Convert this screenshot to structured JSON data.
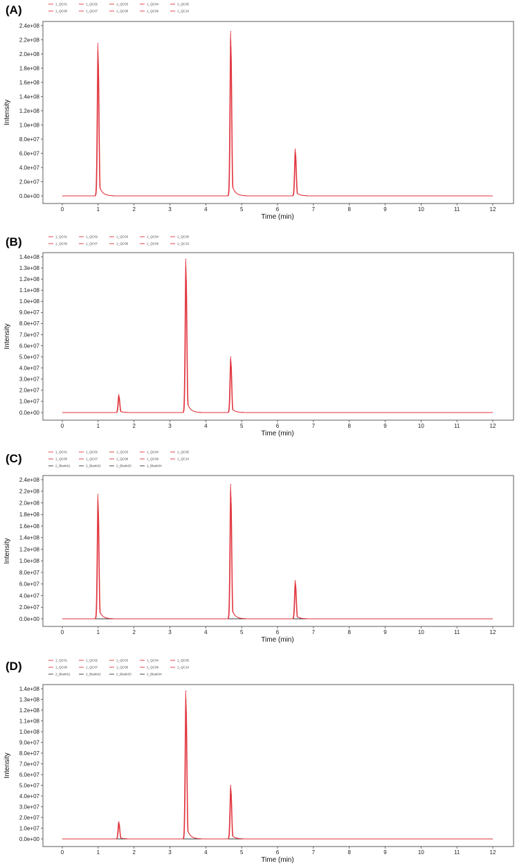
{
  "chart_data": [
    {
      "panel": "(A)",
      "type": "line",
      "xlabel": "Time (min)",
      "ylabel": "Intensity",
      "xlim": [
        0,
        12
      ],
      "ylim": [
        0,
        240000000
      ],
      "x_ticks": [
        "0",
        "1",
        "2",
        "3",
        "4",
        "5",
        "6",
        "7",
        "8",
        "9",
        "10",
        "11",
        "12"
      ],
      "y_ticks": [
        "0.0e+00",
        "2.0e+07",
        "4.0e+07",
        "6.0e+07",
        "8.0e+07",
        "1.0e+08",
        "1.2e+08",
        "1.4e+08",
        "1.6e+08",
        "1.8e+08",
        "2.0e+08",
        "2.2e+08",
        "2.4e+08"
      ],
      "grid": false,
      "legend_position": "top",
      "legend": [
        [
          "1_QC01",
          "1_QC02",
          "1_QC03",
          "1_QC04",
          "1_QC05"
        ],
        [
          "1_QC06",
          "1_QC07",
          "1_QC08",
          "1_QC09",
          "1_QC10"
        ]
      ],
      "series_color": "#e0303a",
      "blank_color": "#333333",
      "peaks": [
        {
          "x": 1.0,
          "y": 215000000
        },
        {
          "x": 4.7,
          "y": 232000000
        },
        {
          "x": 6.5,
          "y": 66000000
        }
      ]
    },
    {
      "panel": "(B)",
      "type": "line",
      "xlabel": "Time (min)",
      "ylabel": "Intensity",
      "xlim": [
        0,
        12
      ],
      "ylim": [
        0,
        140000000
      ],
      "x_ticks": [
        "0",
        "1",
        "2",
        "3",
        "4",
        "5",
        "6",
        "7",
        "8",
        "9",
        "10",
        "11",
        "12"
      ],
      "y_ticks": [
        "0.0e+00",
        "1.0e+07",
        "2.0e+07",
        "3.0e+07",
        "4.0e+07",
        "5.0e+07",
        "6.0e+07",
        "7.0e+07",
        "8.0e+07",
        "9.0e+07",
        "1.0e+08",
        "1.1e+08",
        "1.2e+08",
        "1.3e+08",
        "1.4e+08"
      ],
      "grid": false,
      "legend_position": "top",
      "legend": [
        [
          "1_QC01",
          "1_QC02",
          "1_QC03",
          "1_QC04",
          "1_QC05"
        ],
        [
          "1_QC06",
          "1_QC07",
          "1_QC08",
          "1_QC09",
          "1_QC10"
        ]
      ],
      "series_color": "#e0303a",
      "blank_color": "#333333",
      "peaks": [
        {
          "x": 1.58,
          "y": 16000000
        },
        {
          "x": 3.45,
          "y": 138000000
        },
        {
          "x": 4.7,
          "y": 50000000
        }
      ]
    },
    {
      "panel": "(C)",
      "type": "line",
      "xlabel": "Time (min)",
      "ylabel": "Intensity",
      "xlim": [
        0,
        12
      ],
      "ylim": [
        0,
        240000000
      ],
      "x_ticks": [
        "0",
        "1",
        "2",
        "3",
        "4",
        "5",
        "6",
        "7",
        "8",
        "9",
        "10",
        "11",
        "12"
      ],
      "y_ticks": [
        "0.0e+00",
        "2.0e+07",
        "4.0e+07",
        "6.0e+07",
        "8.0e+07",
        "1.0e+08",
        "1.2e+08",
        "1.4e+08",
        "1.6e+08",
        "1.8e+08",
        "2.0e+08",
        "2.2e+08",
        "2.4e+08"
      ],
      "grid": false,
      "legend_position": "top",
      "legend": [
        [
          "1_QC01",
          "1_QC02",
          "1_QC03",
          "1_QC04",
          "1_QC05"
        ],
        [
          "1_QC06",
          "1_QC07",
          "1_QC08",
          "1_QC09",
          "1_QC10"
        ],
        [
          "2_Blank01",
          "2_Blank02",
          "2_Blank03",
          "2_Blank04"
        ]
      ],
      "series_color": "#e0303a",
      "blank_color": "#333333",
      "peaks": [
        {
          "x": 1.0,
          "y": 215000000
        },
        {
          "x": 4.7,
          "y": 232000000
        },
        {
          "x": 6.5,
          "y": 66000000
        }
      ]
    },
    {
      "panel": "(D)",
      "type": "line",
      "xlabel": "Time (min)",
      "ylabel": "Intensity",
      "xlim": [
        0,
        12
      ],
      "ylim": [
        0,
        140000000
      ],
      "x_ticks": [
        "0",
        "1",
        "2",
        "3",
        "4",
        "5",
        "6",
        "7",
        "8",
        "9",
        "10",
        "11",
        "12"
      ],
      "y_ticks": [
        "0.0e+00",
        "1.0e+07",
        "2.0e+07",
        "3.0e+07",
        "4.0e+07",
        "5.0e+07",
        "6.0e+07",
        "7.0e+07",
        "8.0e+07",
        "9.0e+07",
        "1.0e+08",
        "1.1e+08",
        "1.2e+08",
        "1.3e+08",
        "1.4e+08"
      ],
      "grid": false,
      "legend_position": "top",
      "legend": [
        [
          "1_QC01",
          "1_QC02",
          "1_QC03",
          "1_QC04",
          "1_QC05"
        ],
        [
          "1_QC06",
          "1_QC07",
          "1_QC08",
          "1_QC09",
          "1_QC10"
        ],
        [
          "2_Blank01",
          "2_Blank02",
          "2_Blank03",
          "2_Blank04"
        ]
      ],
      "series_color": "#e0303a",
      "blank_color": "#333333",
      "peaks": [
        {
          "x": 1.58,
          "y": 16000000
        },
        {
          "x": 3.45,
          "y": 138000000
        },
        {
          "x": 4.7,
          "y": 50000000
        }
      ]
    }
  ]
}
